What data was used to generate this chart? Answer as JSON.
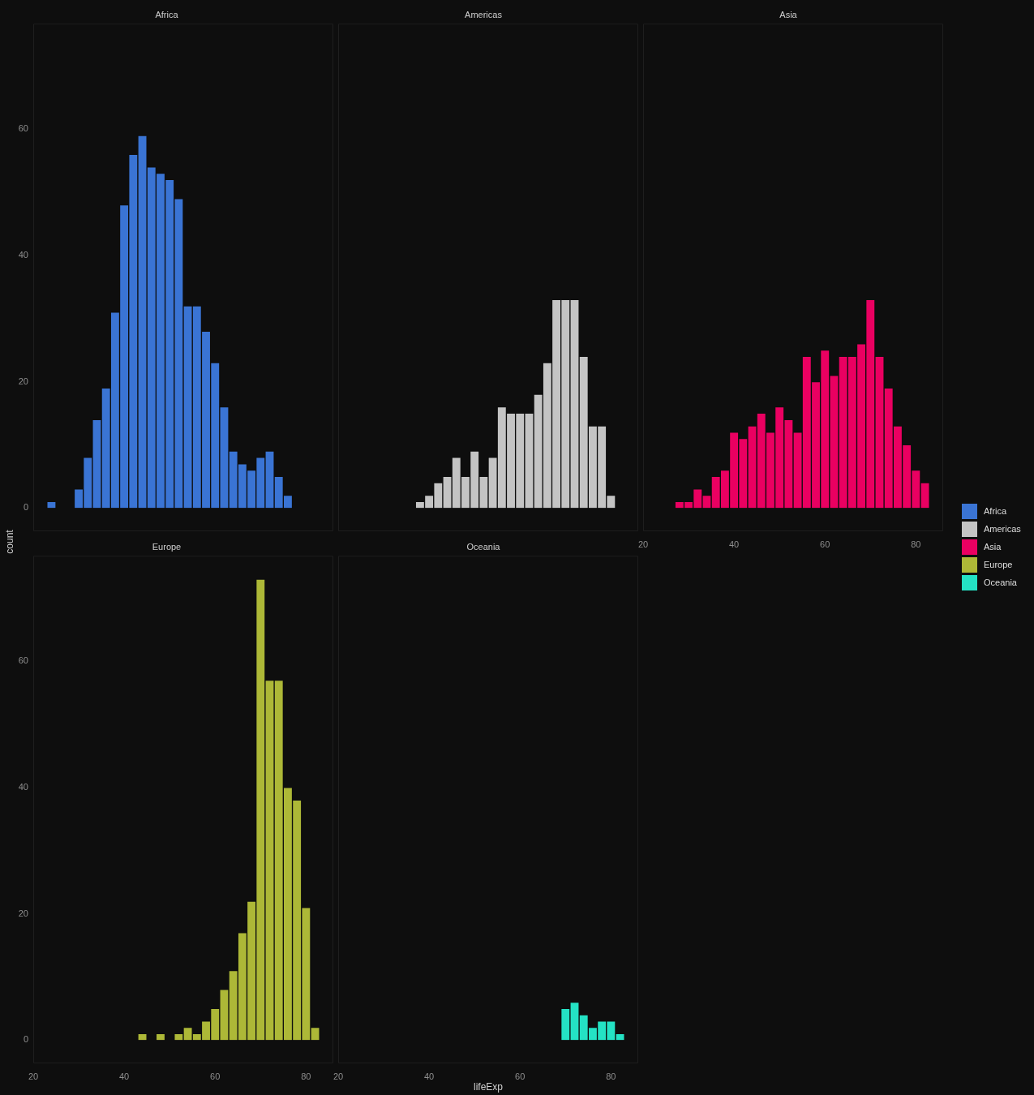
{
  "chart_data": [
    {
      "type": "histogram",
      "title": "Africa",
      "ylabel": "count",
      "bins": [
        23,
        25,
        27,
        29,
        31,
        33,
        35,
        37,
        39,
        41,
        43,
        45,
        47,
        49,
        51,
        53,
        55,
        57,
        59,
        61,
        63,
        65,
        67,
        69,
        71,
        73,
        75,
        77,
        79,
        81,
        83
      ],
      "series": [
        {
          "name": "Africa",
          "color": "#3a74d4",
          "values": [
            1,
            0,
            0,
            3,
            8,
            14,
            19,
            31,
            48,
            56,
            59,
            54,
            53,
            52,
            49,
            32,
            32,
            28,
            23,
            16,
            9,
            7,
            6,
            8,
            9,
            5,
            2,
            0,
            0,
            0
          ]
        }
      ],
      "xlim": [
        20,
        86
      ],
      "xticks": [
        20,
        40,
        60,
        80
      ],
      "ylim": [
        -3.7,
        76.7
      ],
      "yticks": [
        0,
        20,
        40,
        60
      ],
      "tick_labels": "y",
      "legend": "right"
    },
    {
      "type": "histogram",
      "title": "Americas",
      "bins": [
        23,
        25,
        27,
        29,
        31,
        33,
        35,
        37,
        39,
        41,
        43,
        45,
        47,
        49,
        51,
        53,
        55,
        57,
        59,
        61,
        63,
        65,
        67,
        69,
        71,
        73,
        75,
        77,
        79,
        81,
        83
      ],
      "series": [
        {
          "name": "Americas",
          "color": "#c4c4c4",
          "values": [
            0,
            0,
            0,
            0,
            0,
            0,
            0,
            1,
            2,
            4,
            5,
            8,
            5,
            9,
            5,
            8,
            16,
            15,
            15,
            15,
            18,
            23,
            33,
            33,
            33,
            24,
            13,
            13,
            2,
            0
          ]
        }
      ],
      "xlim": [
        20,
        86
      ],
      "xticks": [
        20,
        40,
        60,
        80
      ],
      "ylim": [
        -3.7,
        76.7
      ],
      "yticks": [
        0,
        20,
        40,
        60
      ],
      "tick_labels": false,
      "legend": "right"
    },
    {
      "type": "histogram",
      "title": "Asia",
      "bins": [
        23,
        25,
        27,
        29,
        31,
        33,
        35,
        37,
        39,
        41,
        43,
        45,
        47,
        49,
        51,
        53,
        55,
        57,
        59,
        61,
        63,
        65,
        67,
        69,
        71,
        73,
        75,
        77,
        79,
        81,
        83
      ],
      "series": [
        {
          "name": "Asia",
          "color": "#ea0061",
          "values": [
            0,
            0,
            1,
            1,
            3,
            2,
            5,
            6,
            12,
            11,
            13,
            15,
            12,
            16,
            14,
            12,
            24,
            20,
            25,
            21,
            24,
            24,
            26,
            33,
            24,
            19,
            13,
            10,
            6,
            4
          ]
        }
      ],
      "xlim": [
        20,
        86
      ],
      "xticks": [
        20,
        40,
        60,
        80
      ],
      "ylim": [
        -3.7,
        76.7
      ],
      "yticks": [
        0,
        20,
        40,
        60
      ],
      "tick_labels": "x",
      "legend": "right"
    },
    {
      "type": "histogram",
      "title": "Europe",
      "bins": [
        23,
        25,
        27,
        29,
        31,
        33,
        35,
        37,
        39,
        41,
        43,
        45,
        47,
        49,
        51,
        53,
        55,
        57,
        59,
        61,
        63,
        65,
        67,
        69,
        71,
        73,
        75,
        77,
        79,
        81,
        83
      ],
      "series": [
        {
          "name": "Europe",
          "color": "#adb837",
          "values": [
            0,
            0,
            0,
            0,
            0,
            0,
            0,
            0,
            0,
            0,
            1,
            0,
            1,
            0,
            1,
            2,
            1,
            3,
            5,
            8,
            11,
            17,
            22,
            73,
            57,
            57,
            40,
            38,
            21,
            2
          ]
        }
      ],
      "xlim": [
        20,
        86
      ],
      "xticks": [
        20,
        40,
        60,
        80
      ],
      "ylim": [
        -3.7,
        76.7
      ],
      "yticks": [
        0,
        20,
        40,
        60
      ],
      "legend": "right"
    },
    {
      "type": "histogram",
      "title": "Oceania",
      "xlabel": "lifeExp",
      "bins": [
        23,
        25,
        27,
        29,
        31,
        33,
        35,
        37,
        39,
        41,
        43,
        45,
        47,
        49,
        51,
        53,
        55,
        57,
        59,
        61,
        63,
        65,
        67,
        69,
        71,
        73,
        75,
        77,
        79,
        81,
        83
      ],
      "series": [
        {
          "name": "Oceania",
          "color": "#24e2c4",
          "values": [
            0,
            0,
            0,
            0,
            0,
            0,
            0,
            0,
            0,
            0,
            0,
            0,
            0,
            0,
            0,
            0,
            0,
            0,
            0,
            0,
            0,
            0,
            0,
            5,
            6,
            4,
            2,
            3,
            3,
            1
          ]
        }
      ],
      "xlim": [
        20,
        86
      ],
      "xticks": [
        20,
        40,
        60,
        80
      ],
      "ylim": [
        -3.7,
        76.7
      ],
      "yticks": [
        0,
        20,
        40,
        60
      ],
      "tick_labels": "x",
      "legend": "right"
    }
  ]
}
